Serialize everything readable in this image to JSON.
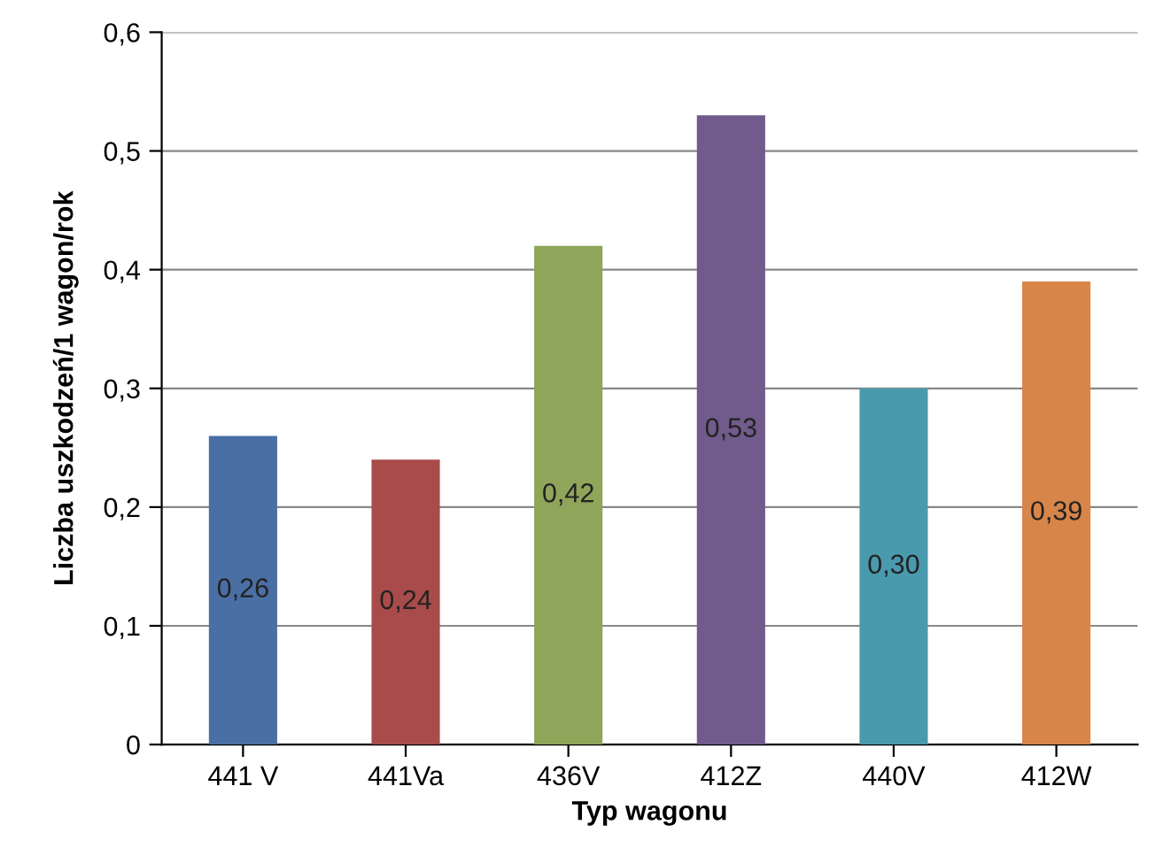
{
  "chart_data": {
    "type": "bar",
    "xlabel": "Typ wagonu",
    "ylabel": "Liczba uszkodzeń/1 wagon/rok",
    "categories": [
      "441 V",
      "441Va",
      "436V",
      "412Z",
      "440V",
      "412W"
    ],
    "values": [
      0.26,
      0.24,
      0.42,
      0.53,
      0.3,
      0.39
    ],
    "colors": [
      "#4a6fa5",
      "#a84b4a",
      "#8ea55a",
      "#715a8c",
      "#4a9aae",
      "#d8854a"
    ],
    "value_labels": [
      "0,26",
      "0,24",
      "0,42",
      "0,53",
      "0,30",
      "0,39"
    ],
    "ylim": [
      0,
      0.6
    ],
    "yticks": [
      0,
      {
        "value": 0.1,
        "label": "0,1"
      },
      {
        "value": 0.2,
        "label": "0,2"
      },
      {
        "value": 0.3,
        "label": "0,3"
      },
      {
        "value": 0.4,
        "label": "0,4"
      },
      {
        "value": 0.5,
        "label": "0,5"
      },
      {
        "value": 0.6,
        "label": "0,6"
      }
    ],
    "grid": "y",
    "legend": false
  }
}
